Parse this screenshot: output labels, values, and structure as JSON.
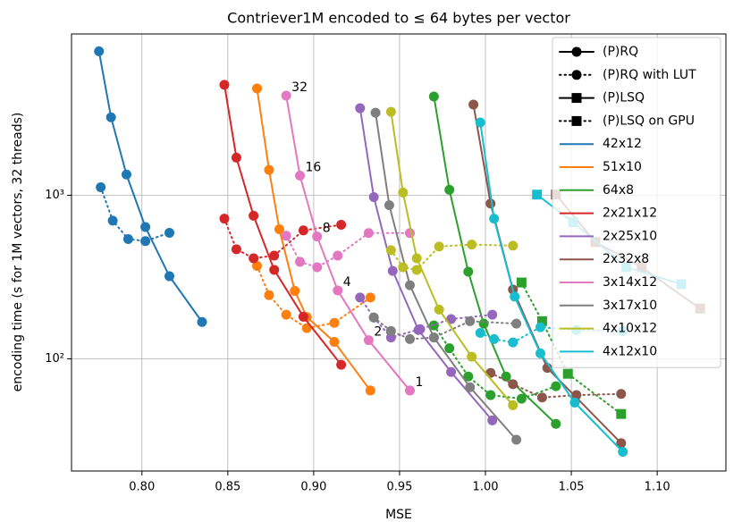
{
  "chart_data": {
    "type": "line",
    "title": "Contriever1M encoded to ≤ 64 bytes per vector",
    "xlabel": "MSE",
    "ylabel": "encoding time (s for 1M vectors, 32 threads)",
    "xlim": [
      0.759,
      1.14
    ],
    "ylim": [
      20.6,
      9700
    ],
    "log_y": true,
    "grid": true,
    "legend": "upper right",
    "xticks": [
      {
        "value": 0.8,
        "label": "0.80"
      },
      0.85,
      {
        "value": 0.9,
        "label": "0.90"
      },
      0.95,
      {
        "value": 1.0,
        "label": "1.00"
      },
      1.05,
      {
        "value": 1.1,
        "label": "1.10"
      }
    ],
    "yticks": [
      {
        "value": 100,
        "label": "10²"
      },
      {
        "value": 1000,
        "label": "10³"
      }
    ],
    "styles": [
      {
        "name": "(P)RQ",
        "marker": "circle",
        "dash": "solid"
      },
      {
        "name": "(P)RQ with LUT",
        "marker": "circle",
        "dash": "dotted"
      },
      {
        "name": "(P)LSQ",
        "marker": "square",
        "dash": "solid"
      },
      {
        "name": "(P)LSQ on GPU",
        "marker": "square",
        "dash": "dotted"
      }
    ],
    "series": [
      {
        "name": "42x12",
        "color": "#1f77b4",
        "lines": [
          {
            "style": 0,
            "x": [
              0.775,
              0.782,
              0.791,
              0.802,
              0.816,
              0.835
            ],
            "values": [
              7600,
              3000,
              1340,
              640,
              320,
              168
            ]
          },
          {
            "style": 1,
            "x": [
              0.776,
              0.783,
              0.792,
              0.802,
              0.816
            ],
            "values": [
              1120,
              700,
              540,
              525,
              590
            ]
          }
        ]
      },
      {
        "name": "51x10",
        "color": "#ff7f0e",
        "lines": [
          {
            "style": 0,
            "x": [
              0.867,
              0.874,
              0.88,
              0.889,
              0.896,
              0.912,
              0.933
            ],
            "values": [
              4500,
              1430,
              620,
              260,
              180,
              127,
              64
            ]
          },
          {
            "style": 1,
            "x": [
              0.867,
              0.874,
              0.884,
              0.896,
              0.912,
              0.933
            ],
            "values": [
              370,
              245,
              186,
              154,
              166,
              237
            ]
          }
        ]
      },
      {
        "name": "64x8",
        "color": "#2ca02c",
        "lines": [
          {
            "style": 0,
            "x": [
              0.97,
              0.979,
              0.99,
              0.999,
              1.012,
              1.041
            ],
            "values": [
              4020,
              1080,
              341,
              164,
              78,
              40
            ]
          },
          {
            "style": 1,
            "x": [
              0.97,
              0.979,
              0.99,
              1.003,
              1.021,
              1.041
            ],
            "values": [
              160,
              116,
              78,
              60,
              57,
              68
            ]
          },
          {
            "style": 3,
            "x": [
              1.021,
              1.033,
              1.048,
              1.079
            ],
            "values": [
              293,
              170,
              81,
              46
            ]
          }
        ]
      },
      {
        "name": "2x21x12",
        "color": "#d62728",
        "lines": [
          {
            "style": 0,
            "x": [
              0.848,
              0.855,
              0.865,
              0.877,
              0.894,
              0.916
            ],
            "values": [
              4740,
              1700,
              750,
              350,
              181,
              92
            ]
          },
          {
            "style": 1,
            "x": [
              0.848,
              0.855,
              0.865,
              0.877,
              0.894,
              0.916
            ],
            "values": [
              720,
              468,
              412,
              428,
              610,
              660
            ]
          }
        ]
      },
      {
        "name": "2x25x10",
        "color": "#9467bd",
        "lines": [
          {
            "style": 0,
            "x": [
              0.927,
              0.935,
              0.946,
              0.961,
              0.98,
              1.004
            ],
            "values": [
              3410,
              975,
              345,
              150,
              83,
              42
            ]
          },
          {
            "style": 1,
            "x": [
              0.927,
              0.935,
              0.945,
              0.962,
              0.98,
              1.004
            ],
            "values": [
              237,
              179,
              135,
              152,
              175,
              186
            ]
          }
        ]
      },
      {
        "name": "2x32x8",
        "color": "#8c564b",
        "lines": [
          {
            "style": 0,
            "x": [
              0.993,
              1.003,
              1.016,
              1.036,
              1.079
            ],
            "values": [
              3590,
              890,
              265,
              88,
              30.5
            ]
          },
          {
            "style": 1,
            "x": [
              1.003,
              1.016,
              1.033,
              1.053,
              1.079
            ],
            "values": [
              82,
              70,
              58,
              60,
              61
            ]
          },
          {
            "style": 2,
            "x": [
              1.041,
              1.064,
              1.091,
              1.125
            ],
            "values": [
              1010,
              518,
              363,
              203
            ]
          }
        ]
      },
      {
        "name": "3x14x12",
        "color": "#e377c2",
        "lines": [
          {
            "style": 0,
            "x": [
              0.884,
              0.892,
              0.902,
              0.914,
              0.932,
              0.956
            ],
            "values": [
              4070,
              1320,
              560,
              262,
              130,
              64
            ]
          },
          {
            "style": 1,
            "x": [
              0.884,
              0.892,
              0.902,
              0.914,
              0.932,
              0.956
            ],
            "values": [
              566,
              392,
              363,
              428,
              588,
              588
            ]
          }
        ]
      },
      {
        "name": "3x17x10",
        "color": "#7f7f7f",
        "lines": [
          {
            "style": 0,
            "x": [
              0.936,
              0.944,
              0.956,
              0.97,
              0.991,
              1.018
            ],
            "values": [
              3200,
              870,
              282,
              135,
              67,
              32
            ]
          },
          {
            "style": 1,
            "x": [
              0.935,
              0.945,
              0.956,
              0.97,
              0.991,
              1.018
            ],
            "values": [
              179,
              148,
              132,
              135,
              170,
              164
            ]
          }
        ]
      },
      {
        "name": "4x10x12",
        "color": "#bcbd22",
        "lines": [
          {
            "style": 0,
            "x": [
              0.945,
              0.952,
              0.96,
              0.973,
              0.992,
              1.016
            ],
            "values": [
              3240,
              1040,
              412,
              200,
              103,
              52
            ]
          },
          {
            "style": 1,
            "x": [
              0.945,
              0.952,
              0.96,
              0.973,
              0.992,
              1.016
            ],
            "values": [
              462,
              363,
              350,
              486,
              500,
              492
            ]
          }
        ]
      },
      {
        "name": "4x12x10",
        "color": "#17becf",
        "lines": [
          {
            "style": 0,
            "x": [
              0.997,
              1.005,
              1.017,
              1.032,
              1.052,
              1.08
            ],
            "values": [
              2790,
              720,
              240,
              108,
              54,
              27
            ]
          },
          {
            "style": 1,
            "x": [
              0.997,
              1.005,
              1.016,
              1.032,
              1.053,
              1.08
            ],
            "values": [
              144,
              132,
              126,
              156,
              150,
              148
            ]
          },
          {
            "style": 2,
            "x": [
              1.03,
              1.051,
              1.082,
              1.114
            ],
            "values": [
              1010,
              685,
              363,
              286
            ]
          }
        ]
      }
    ],
    "annotations": [
      {
        "text": "32",
        "x": 0.884,
        "y": 4070
      },
      {
        "text": "16",
        "x": 0.892,
        "y": 1320
      },
      {
        "text": "8",
        "x": 0.902,
        "y": 560
      },
      {
        "text": "4",
        "x": 0.914,
        "y": 262
      },
      {
        "text": "2",
        "x": 0.932,
        "y": 130
      },
      {
        "text": "1",
        "x": 0.956,
        "y": 64
      }
    ]
  }
}
